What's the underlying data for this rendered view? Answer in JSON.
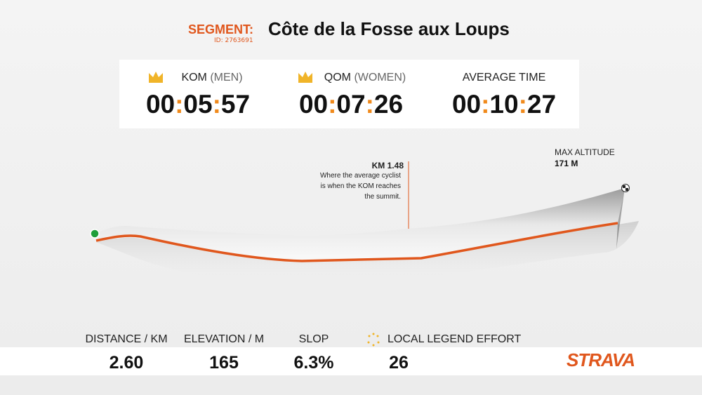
{
  "header": {
    "label": "SEGMENT:",
    "title": "Côte de la Fosse aux Loups",
    "id": "ID: 2763691"
  },
  "records": [
    {
      "label": "KOM",
      "qualifier": "(MEN)",
      "time": "00:05:57"
    },
    {
      "label": "QOM",
      "qualifier": "(WOMEN)",
      "time": "00:07:26"
    },
    {
      "label": "AVERAGE TIME",
      "time": "00:10:27"
    }
  ],
  "annotation": {
    "title": "KM 1.48",
    "lines": [
      "Where the average cyclist",
      "is when the KOM reaches",
      "the summit."
    ]
  },
  "max_altitude": {
    "label": "MAX ALTITUDE",
    "value": "171 M"
  },
  "stats": [
    {
      "label": "DISTANCE / KM",
      "value": "2.60"
    },
    {
      "label": "ELEVATION / M",
      "value": "165"
    },
    {
      "label": "SLOP",
      "value": "6.3%"
    },
    {
      "label": "LOCAL LEGEND EFFORT",
      "value": "26"
    }
  ],
  "logo": "STRAVA"
}
